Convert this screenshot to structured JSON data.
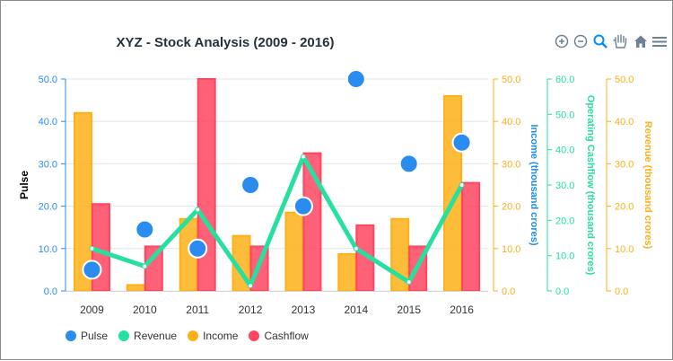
{
  "toolbar": {
    "zoom_in_icon": "zoom-in-icon",
    "zoom_out_icon": "zoom-out-icon",
    "zoom_selection_icon": "magnifier-icon",
    "pan_icon": "hand-icon",
    "reset_icon": "home-icon",
    "menu_icon": "hamburger-menu-icon"
  },
  "chart_data": {
    "type": "bar",
    "title": "XYZ - Stock Analysis (2009 - 2016)",
    "categories": [
      "2009",
      "2010",
      "2011",
      "2012",
      "2013",
      "2014",
      "2015",
      "2016"
    ],
    "series": [
      {
        "name": "Pulse",
        "type": "scatter",
        "axis": "Pulse",
        "color": "#2b8cf0",
        "values": [
          5,
          14.5,
          10,
          25,
          20,
          50,
          30,
          35
        ]
      },
      {
        "name": "Revenue",
        "type": "line",
        "axis": "Operating Cashflow (thousand crores)",
        "color": "#26e0a0",
        "values": [
          12,
          7,
          23,
          1.5,
          38,
          12,
          2.5,
          30
        ]
      },
      {
        "name": "Income",
        "type": "bar",
        "axis": "Income (thousand crores)",
        "color": "#feb019",
        "values": [
          42,
          1.4,
          17,
          13,
          18.5,
          8.7,
          17,
          46
        ]
      },
      {
        "name": "Cashflow",
        "type": "bar",
        "axis": "Income (thousand crores)",
        "color": "#ff4560",
        "values": [
          20.5,
          10.5,
          50,
          10.5,
          32.5,
          15.5,
          10.5,
          25.5
        ]
      }
    ],
    "yaxes": [
      {
        "title": "Pulse",
        "side": "left",
        "color": "#2b8cf0",
        "title_color": "#000000",
        "min": 0,
        "max": 50,
        "ticks": [
          "0.0",
          "10.0",
          "20.0",
          "30.0",
          "40.0",
          "50.0"
        ]
      },
      {
        "title": "Income (thousand crores)",
        "side": "right",
        "color": "#1e8fe8",
        "tick_color": "#feb019",
        "min": 0,
        "max": 50,
        "ticks": [
          "0.0",
          "10.0",
          "20.0",
          "30.0",
          "40.0",
          "50.0"
        ]
      },
      {
        "title": "Operating Cashflow (thousand crores)",
        "side": "right",
        "color": "#26e0a0",
        "tick_color": "#26e0a0",
        "min": 0,
        "max": 60,
        "ticks": [
          "0.0",
          "10.0",
          "20.0",
          "30.0",
          "40.0",
          "50.0",
          "60.0"
        ]
      },
      {
        "title": "Revenue (thousand crores)",
        "side": "right",
        "color": "#feb019",
        "tick_color": "#feb019",
        "min": 0,
        "max": 50,
        "ticks": [
          "0.0",
          "10.0",
          "20.0",
          "30.0",
          "40.0",
          "50.0"
        ]
      }
    ],
    "grid": true,
    "legend": "bottom-left"
  }
}
